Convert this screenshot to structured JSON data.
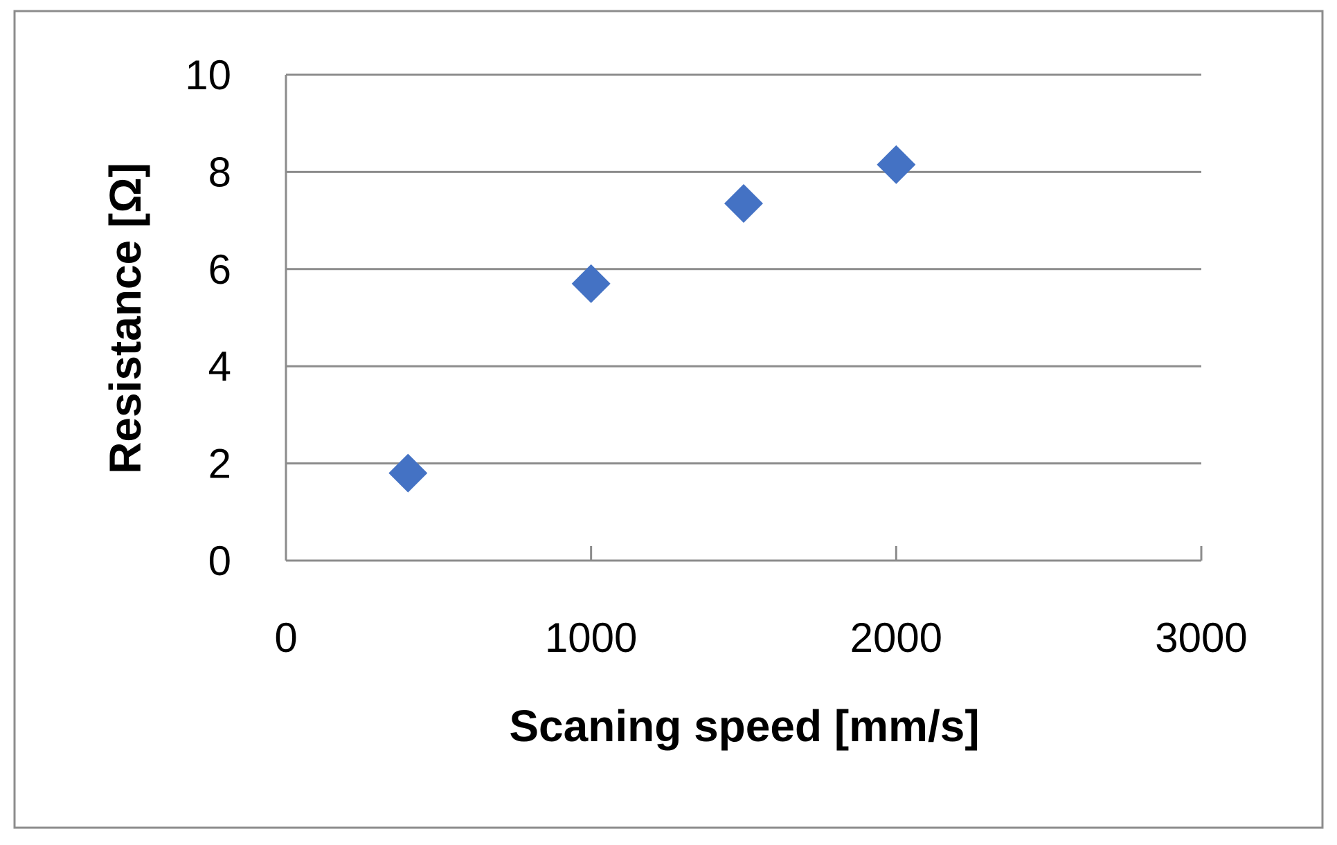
{
  "chart_data": {
    "type": "scatter",
    "title": "",
    "xlabel": "Scaning speed [mm/s]",
    "ylabel": "Resistance [Ω]",
    "xlim": [
      0,
      3000
    ],
    "ylim": [
      0,
      10
    ],
    "x_ticks": [
      "0",
      "1000",
      "2000",
      "3000"
    ],
    "y_ticks": [
      "0",
      "2",
      "4",
      "6",
      "8",
      "10"
    ],
    "grid": "horizontal",
    "legend": "none",
    "series": [
      {
        "x": [
          400,
          1000,
          1500,
          2000
        ],
        "y": [
          1.8,
          5.7,
          7.35,
          8.15
        ],
        "marker": "diamond",
        "color": "#4472C4"
      }
    ]
  }
}
